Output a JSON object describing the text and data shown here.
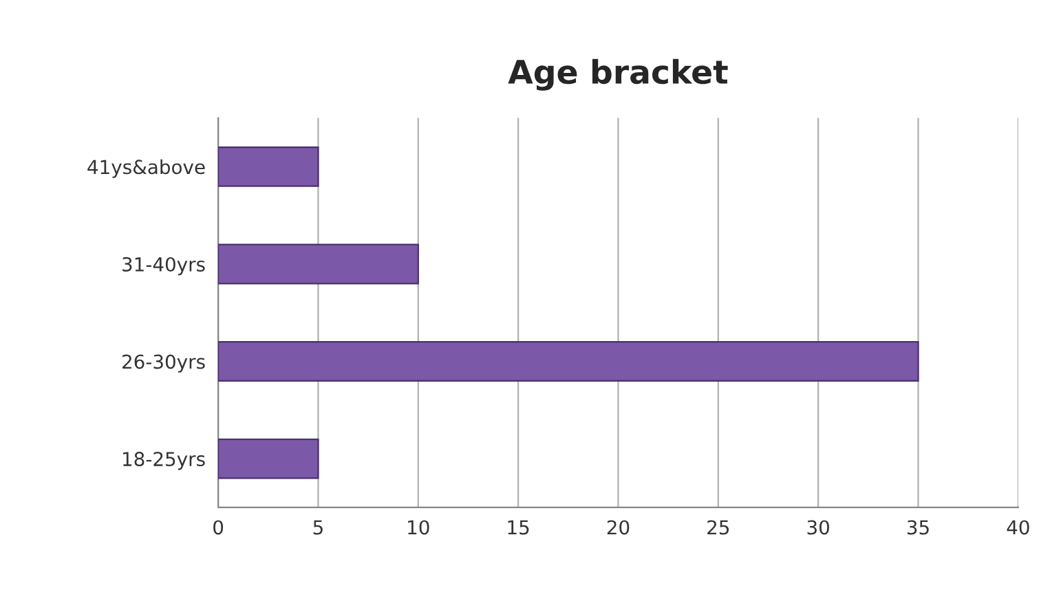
{
  "chart_data": {
    "type": "bar",
    "title": "Age bracket",
    "orientation": "horizontal",
    "categories": [
      "41ys&above",
      "31-40yrs",
      "26-30yrs",
      "18-25yrs"
    ],
    "values": [
      5,
      10,
      35,
      5
    ],
    "color": "#7b58a8",
    "xlim": [
      0,
      40
    ],
    "xticks": [
      0,
      5,
      10,
      15,
      20,
      25,
      30,
      35,
      40
    ],
    "grid": "x",
    "legend": false
  }
}
